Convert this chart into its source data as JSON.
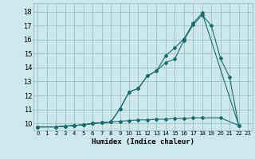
{
  "title": "",
  "xlabel": "Humidex (Indice chaleur)",
  "bg_color": "#cce8ec",
  "grid_color": "#9bbfc4",
  "line_color": "#1a6b6b",
  "xlim": [
    -0.5,
    23.5
  ],
  "ylim": [
    9.5,
    18.6
  ],
  "x_ticks": [
    0,
    1,
    2,
    3,
    4,
    5,
    6,
    7,
    8,
    9,
    10,
    11,
    12,
    13,
    14,
    15,
    16,
    17,
    18,
    19,
    20,
    21,
    22,
    23
  ],
  "y_ticks": [
    10,
    11,
    12,
    13,
    14,
    15,
    16,
    17,
    18
  ],
  "curve1_x": [
    0,
    2,
    3,
    4,
    5,
    6,
    7,
    8,
    9,
    10,
    11,
    12,
    13,
    14,
    15,
    16,
    17,
    18,
    20,
    22
  ],
  "curve1_y": [
    9.75,
    9.75,
    9.8,
    9.85,
    9.9,
    10.0,
    10.05,
    10.1,
    10.15,
    10.2,
    10.25,
    10.25,
    10.3,
    10.3,
    10.35,
    10.35,
    10.4,
    10.4,
    10.4,
    9.85
  ],
  "curve2_x": [
    0,
    2,
    3,
    4,
    5,
    6,
    7,
    8,
    9,
    10,
    11,
    12,
    13,
    14,
    15,
    16,
    17,
    18,
    19,
    20,
    21,
    22
  ],
  "curve2_y": [
    9.75,
    9.75,
    9.8,
    9.85,
    9.9,
    10.0,
    10.05,
    10.1,
    11.05,
    12.25,
    12.5,
    13.4,
    13.75,
    14.35,
    14.6,
    15.95,
    17.05,
    17.75,
    17.0,
    14.65,
    13.3,
    9.85
  ],
  "curve3_x": [
    0,
    2,
    3,
    4,
    5,
    6,
    7,
    8,
    9,
    10,
    11,
    12,
    13,
    14,
    15,
    16,
    17,
    18,
    22
  ],
  "curve3_y": [
    9.75,
    9.75,
    9.8,
    9.85,
    9.9,
    10.0,
    10.05,
    10.1,
    11.05,
    12.25,
    12.5,
    13.4,
    13.75,
    14.85,
    15.4,
    16.05,
    17.15,
    17.9,
    9.85
  ]
}
